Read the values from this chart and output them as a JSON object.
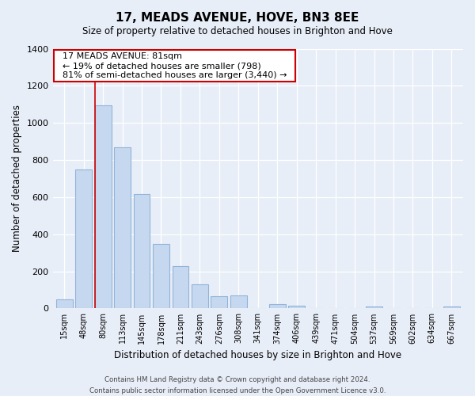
{
  "title": "17, MEADS AVENUE, HOVE, BN3 8EE",
  "subtitle": "Size of property relative to detached houses in Brighton and Hove",
  "xlabel": "Distribution of detached houses by size in Brighton and Hove",
  "ylabel": "Number of detached properties",
  "bar_labels": [
    "15sqm",
    "48sqm",
    "80sqm",
    "113sqm",
    "145sqm",
    "178sqm",
    "211sqm",
    "243sqm",
    "276sqm",
    "308sqm",
    "341sqm",
    "374sqm",
    "406sqm",
    "439sqm",
    "471sqm",
    "504sqm",
    "537sqm",
    "569sqm",
    "602sqm",
    "634sqm",
    "667sqm"
  ],
  "bar_values": [
    50,
    750,
    1095,
    868,
    615,
    348,
    228,
    130,
    65,
    70,
    0,
    22,
    15,
    0,
    0,
    0,
    10,
    0,
    0,
    0,
    10
  ],
  "bar_color": "#c5d8f0",
  "bar_edge_color": "#90b4d8",
  "highlight_bar_index": 2,
  "highlight_line_color": "#cc0000",
  "annotation_title": "17 MEADS AVENUE: 81sqm",
  "annotation_line1": "← 19% of detached houses are smaller (798)",
  "annotation_line2": "81% of semi-detached houses are larger (3,440) →",
  "annotation_box_color": "#ffffff",
  "annotation_box_edge": "#cc0000",
  "ylim": [
    0,
    1400
  ],
  "yticks": [
    0,
    200,
    400,
    600,
    800,
    1000,
    1200,
    1400
  ],
  "footer_line1": "Contains HM Land Registry data © Crown copyright and database right 2024.",
  "footer_line2": "Contains public sector information licensed under the Open Government Licence v3.0.",
  "bg_color": "#e8eef8",
  "plot_bg_color": "#e8eef8",
  "grid_color": "#ffffff"
}
